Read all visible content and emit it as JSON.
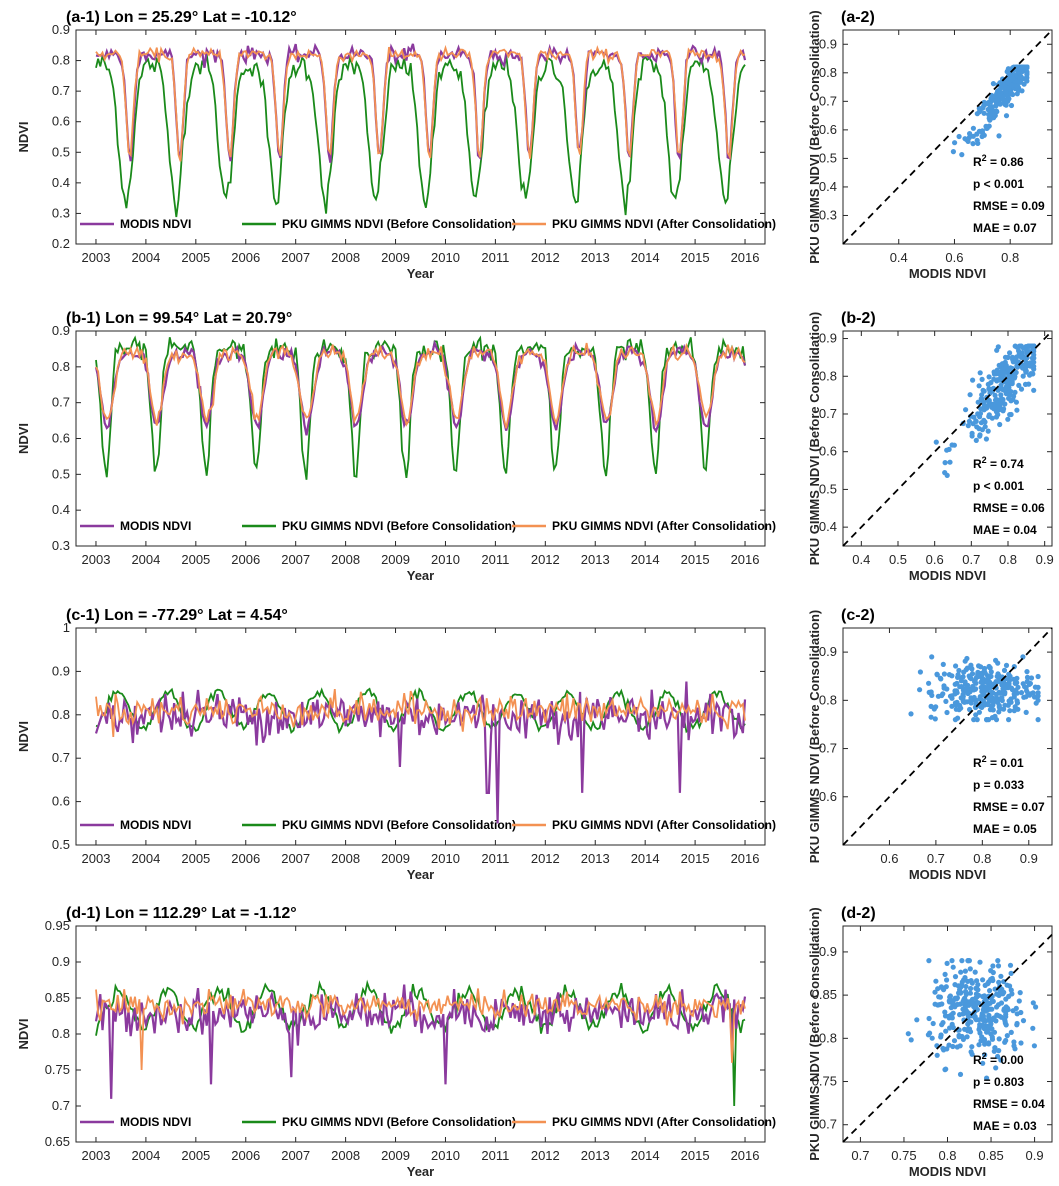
{
  "colors": {
    "modis": "#8B3A9E",
    "before": "#1A8A1A",
    "after": "#F39152",
    "scatter": "#4A98DC",
    "axis": "#262626"
  },
  "legend_labels": [
    "MODIS NDVI",
    "PKU GIMMS NDVI (Before Consolidation)",
    "PKU GIMMS NDVI (After Consolidation)"
  ],
  "chart_data": [
    {
      "id": "a1",
      "type": "line",
      "title": "(a-1)  Lon = 25.29°  Lat = -10.12°",
      "xlabel": "Year",
      "ylabel": "NDVI",
      "xlim": [
        2002.6,
        2016.4
      ],
      "ylim": [
        0.2,
        0.9
      ],
      "xticks": [
        2003,
        2004,
        2005,
        2006,
        2007,
        2008,
        2009,
        2010,
        2011,
        2012,
        2013,
        2014,
        2015,
        2016
      ],
      "yticks": [
        0.2,
        0.3,
        0.4,
        0.5,
        0.6,
        0.7,
        0.8,
        0.9
      ],
      "series_model": {
        "type": "seasonal",
        "start": 2003,
        "end": 2016,
        "modis": {
          "high": 0.82,
          "low": 0.48,
          "phase": 0.68,
          "width": 0.07,
          "noise": 0.025
        },
        "before": {
          "high": 0.79,
          "low": 0.34,
          "phase": 0.6,
          "width": 0.14,
          "noise": 0.04
        },
        "after": {
          "high": 0.82,
          "low": 0.48,
          "phase": 0.68,
          "width": 0.07,
          "noise": 0.02
        }
      }
    },
    {
      "id": "a2",
      "type": "scatter",
      "title": "(a-2)",
      "xlabel": "MODIS NDVI",
      "ylabel": "PKU GIMMS NDVI (Before Consolidation)",
      "xlim": [
        0.2,
        0.95
      ],
      "ylim": [
        0.2,
        0.95
      ],
      "xticks": [
        0.4,
        0.6,
        0.8
      ],
      "yticks": [
        0.3,
        0.4,
        0.5,
        0.6,
        0.7,
        0.8,
        0.9
      ],
      "stats": {
        "r2": "R",
        "r2_sup": "2",
        "r2_val": " = 0.86",
        "p": "p < 0.001",
        "rmse": "RMSE = 0.09",
        "mae": "MAE = 0.07"
      },
      "points_model": {
        "n": 300,
        "cx": 0.8,
        "cy": 0.76,
        "sx": 0.07,
        "sy": 0.09,
        "corr": 0.93,
        "xmin": 0.46,
        "xmax": 0.86,
        "ymin": 0.28,
        "ymax": 0.82
      }
    },
    {
      "id": "b1",
      "type": "line",
      "title": "(b-1)  Lon = 99.54°  Lat = 20.79°",
      "xlabel": "Year",
      "ylabel": "NDVI",
      "xlim": [
        2002.6,
        2016.4
      ],
      "ylim": [
        0.3,
        0.9
      ],
      "xticks": [
        2003,
        2004,
        2005,
        2006,
        2007,
        2008,
        2009,
        2010,
        2011,
        2012,
        2013,
        2014,
        2015,
        2016
      ],
      "yticks": [
        0.3,
        0.4,
        0.5,
        0.6,
        0.7,
        0.8,
        0.9
      ],
      "series_model": {
        "type": "seasonal",
        "start": 2003,
        "end": 2016,
        "modis": {
          "high": 0.84,
          "low": 0.63,
          "phase": 0.22,
          "width": 0.12,
          "noise": 0.02
        },
        "before": {
          "high": 0.85,
          "low": 0.5,
          "phase": 0.2,
          "width": 0.09,
          "noise": 0.03
        },
        "after": {
          "high": 0.84,
          "low": 0.65,
          "phase": 0.22,
          "width": 0.12,
          "noise": 0.02
        }
      }
    },
    {
      "id": "b2",
      "type": "scatter",
      "title": "(b-2)",
      "xlabel": "MODIS NDVI",
      "ylabel": "PKU GIMMS NDVI (Before Consolidation)",
      "xlim": [
        0.35,
        0.92
      ],
      "ylim": [
        0.35,
        0.92
      ],
      "xticks": [
        0.4,
        0.5,
        0.6,
        0.7,
        0.8,
        0.9
      ],
      "yticks": [
        0.4,
        0.5,
        0.6,
        0.7,
        0.8,
        0.9
      ],
      "stats": {
        "r2": "R",
        "r2_sup": "2",
        "r2_val": " = 0.74",
        "p": "p < 0.001",
        "rmse": "RMSE = 0.06",
        "mae": "MAE = 0.04"
      },
      "points_model": {
        "n": 300,
        "cx": 0.8,
        "cy": 0.79,
        "sx": 0.065,
        "sy": 0.085,
        "corr": 0.86,
        "xmin": 0.57,
        "xmax": 0.87,
        "ymin": 0.39,
        "ymax": 0.88
      }
    },
    {
      "id": "c1",
      "type": "line",
      "title": "(c-1)  Lon = -77.29°  Lat = 4.54°",
      "xlabel": "Year",
      "ylabel": "NDVI",
      "xlim": [
        2002.6,
        2016.4
      ],
      "ylim": [
        0.5,
        1.0
      ],
      "xticks": [
        2003,
        2004,
        2005,
        2006,
        2007,
        2008,
        2009,
        2010,
        2011,
        2012,
        2013,
        2014,
        2015,
        2016
      ],
      "yticks": [
        0.5,
        0.6,
        0.7,
        0.8,
        0.9,
        1.0
      ],
      "series_model": {
        "type": "noisy",
        "start": 2003,
        "end": 2016,
        "modis": {
          "mean": 0.8,
          "amp": 0.0,
          "noise": 0.045,
          "dips": [
            [
              2010.85,
              0.62
            ],
            [
              2011.05,
              0.55
            ],
            [
              2012.75,
              0.62
            ],
            [
              2014.7,
              0.62
            ],
            [
              2009.1,
              0.68
            ]
          ]
        },
        "before": {
          "mean": 0.81,
          "amp": 0.04,
          "noise": 0.01
        },
        "after": {
          "mean": 0.81,
          "amp": 0.0,
          "noise": 0.03
        }
      }
    },
    {
      "id": "c2",
      "type": "scatter",
      "title": "(c-2)",
      "xlabel": "MODIS NDVI",
      "ylabel": "PKU GIMMS NDVI (Before Consolidation)",
      "xlim": [
        0.5,
        0.95
      ],
      "ylim": [
        0.5,
        0.95
      ],
      "xticks": [
        0.6,
        0.7,
        0.8,
        0.9
      ],
      "yticks": [
        0.6,
        0.7,
        0.8,
        0.9
      ],
      "stats": {
        "r2": "R",
        "r2_sup": "2",
        "r2_val": " = 0.01",
        "p": "p = 0.033",
        "rmse": "RMSE = 0.07",
        "mae": "MAE = 0.05"
      },
      "points_model": {
        "n": 300,
        "cx": 0.8,
        "cy": 0.82,
        "sx": 0.055,
        "sy": 0.03,
        "corr": 0.1,
        "xmin": 0.54,
        "xmax": 0.92,
        "ymin": 0.76,
        "ymax": 0.89
      }
    },
    {
      "id": "d1",
      "type": "line",
      "title": "(d-1)  Lon = 112.29°  Lat = -1.12°",
      "xlabel": "Year",
      "ylabel": "NDVI",
      "xlim": [
        2002.6,
        2016.4
      ],
      "ylim": [
        0.65,
        0.95
      ],
      "xticks": [
        2003,
        2004,
        2005,
        2006,
        2007,
        2008,
        2009,
        2010,
        2011,
        2012,
        2013,
        2014,
        2015,
        2016
      ],
      "yticks": [
        0.65,
        0.7,
        0.75,
        0.8,
        0.85,
        0.9,
        0.95
      ],
      "series_model": {
        "type": "noisy",
        "start": 2003,
        "end": 2016,
        "modis": {
          "mean": 0.83,
          "amp": 0.0,
          "noise": 0.025,
          "dips": [
            [
              2003.3,
              0.71
            ],
            [
              2005.3,
              0.73
            ],
            [
              2006.9,
              0.74
            ],
            [
              2010.0,
              0.73
            ]
          ]
        },
        "before": {
          "mean": 0.835,
          "amp": 0.025,
          "noise": 0.01,
          "dips": [
            [
              2015.8,
              0.7
            ]
          ]
        },
        "after": {
          "mean": 0.84,
          "amp": 0.0,
          "noise": 0.015,
          "dips": [
            [
              2003.9,
              0.75
            ],
            [
              2015.75,
              0.76
            ]
          ]
        }
      }
    },
    {
      "id": "d2",
      "type": "scatter",
      "title": "(d-2)",
      "xlabel": "MODIS NDVI",
      "ylabel": "PKU GIMMS NDVI (Before Consolidation)",
      "xlim": [
        0.68,
        0.92
      ],
      "ylim": [
        0.68,
        0.93
      ],
      "xticks": [
        0.7,
        0.75,
        0.8,
        0.85,
        0.9
      ],
      "yticks": [
        0.7,
        0.75,
        0.8,
        0.85,
        0.9
      ],
      "stats": {
        "r2": "R",
        "r2_sup": "2",
        "r2_val": " = 0.00",
        "p": "p = 0.803",
        "rmse": "RMSE = 0.04",
        "mae": "MAE = 0.03"
      },
      "points_model": {
        "n": 320,
        "cx": 0.835,
        "cy": 0.83,
        "sx": 0.028,
        "sy": 0.028,
        "corr": 0.0,
        "xmin": 0.71,
        "xmax": 0.91,
        "ymin": 0.72,
        "ymax": 0.89
      }
    }
  ]
}
